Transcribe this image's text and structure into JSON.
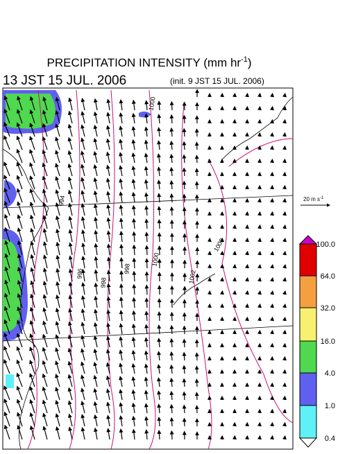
{
  "title": "PRECIPITATION INTENSITY (mm hr",
  "title_exponent": "-1",
  "title_end": ")",
  "valid_time": "13 JST 15 JUL. 2006",
  "init_time": "(init. 9 JST 15 JUL. 2006)",
  "wind_legend": {
    "label": "20 m s",
    "exponent": "-1"
  },
  "colorbar": {
    "ticks": [
      {
        "value": 100,
        "label": "100.0"
      },
      {
        "value": 64,
        "label": "64.0"
      },
      {
        "value": 32,
        "label": "32.0"
      },
      {
        "value": 16,
        "label": "16.0"
      },
      {
        "value": 4,
        "label": "4.0"
      },
      {
        "value": 1,
        "label": "1.0"
      },
      {
        "value": 0.4,
        "label": "0.4"
      }
    ],
    "colors": [
      "#cc00cc",
      "#e00000",
      "#f4a040",
      "#f8f070",
      "#50d850",
      "#6060f0",
      "#60f0f8",
      "#ffffff"
    ]
  },
  "contour_labels": [
    "1000",
    "1000",
    "998",
    "998",
    "996",
    "994",
    "1002",
    "1000"
  ]
}
